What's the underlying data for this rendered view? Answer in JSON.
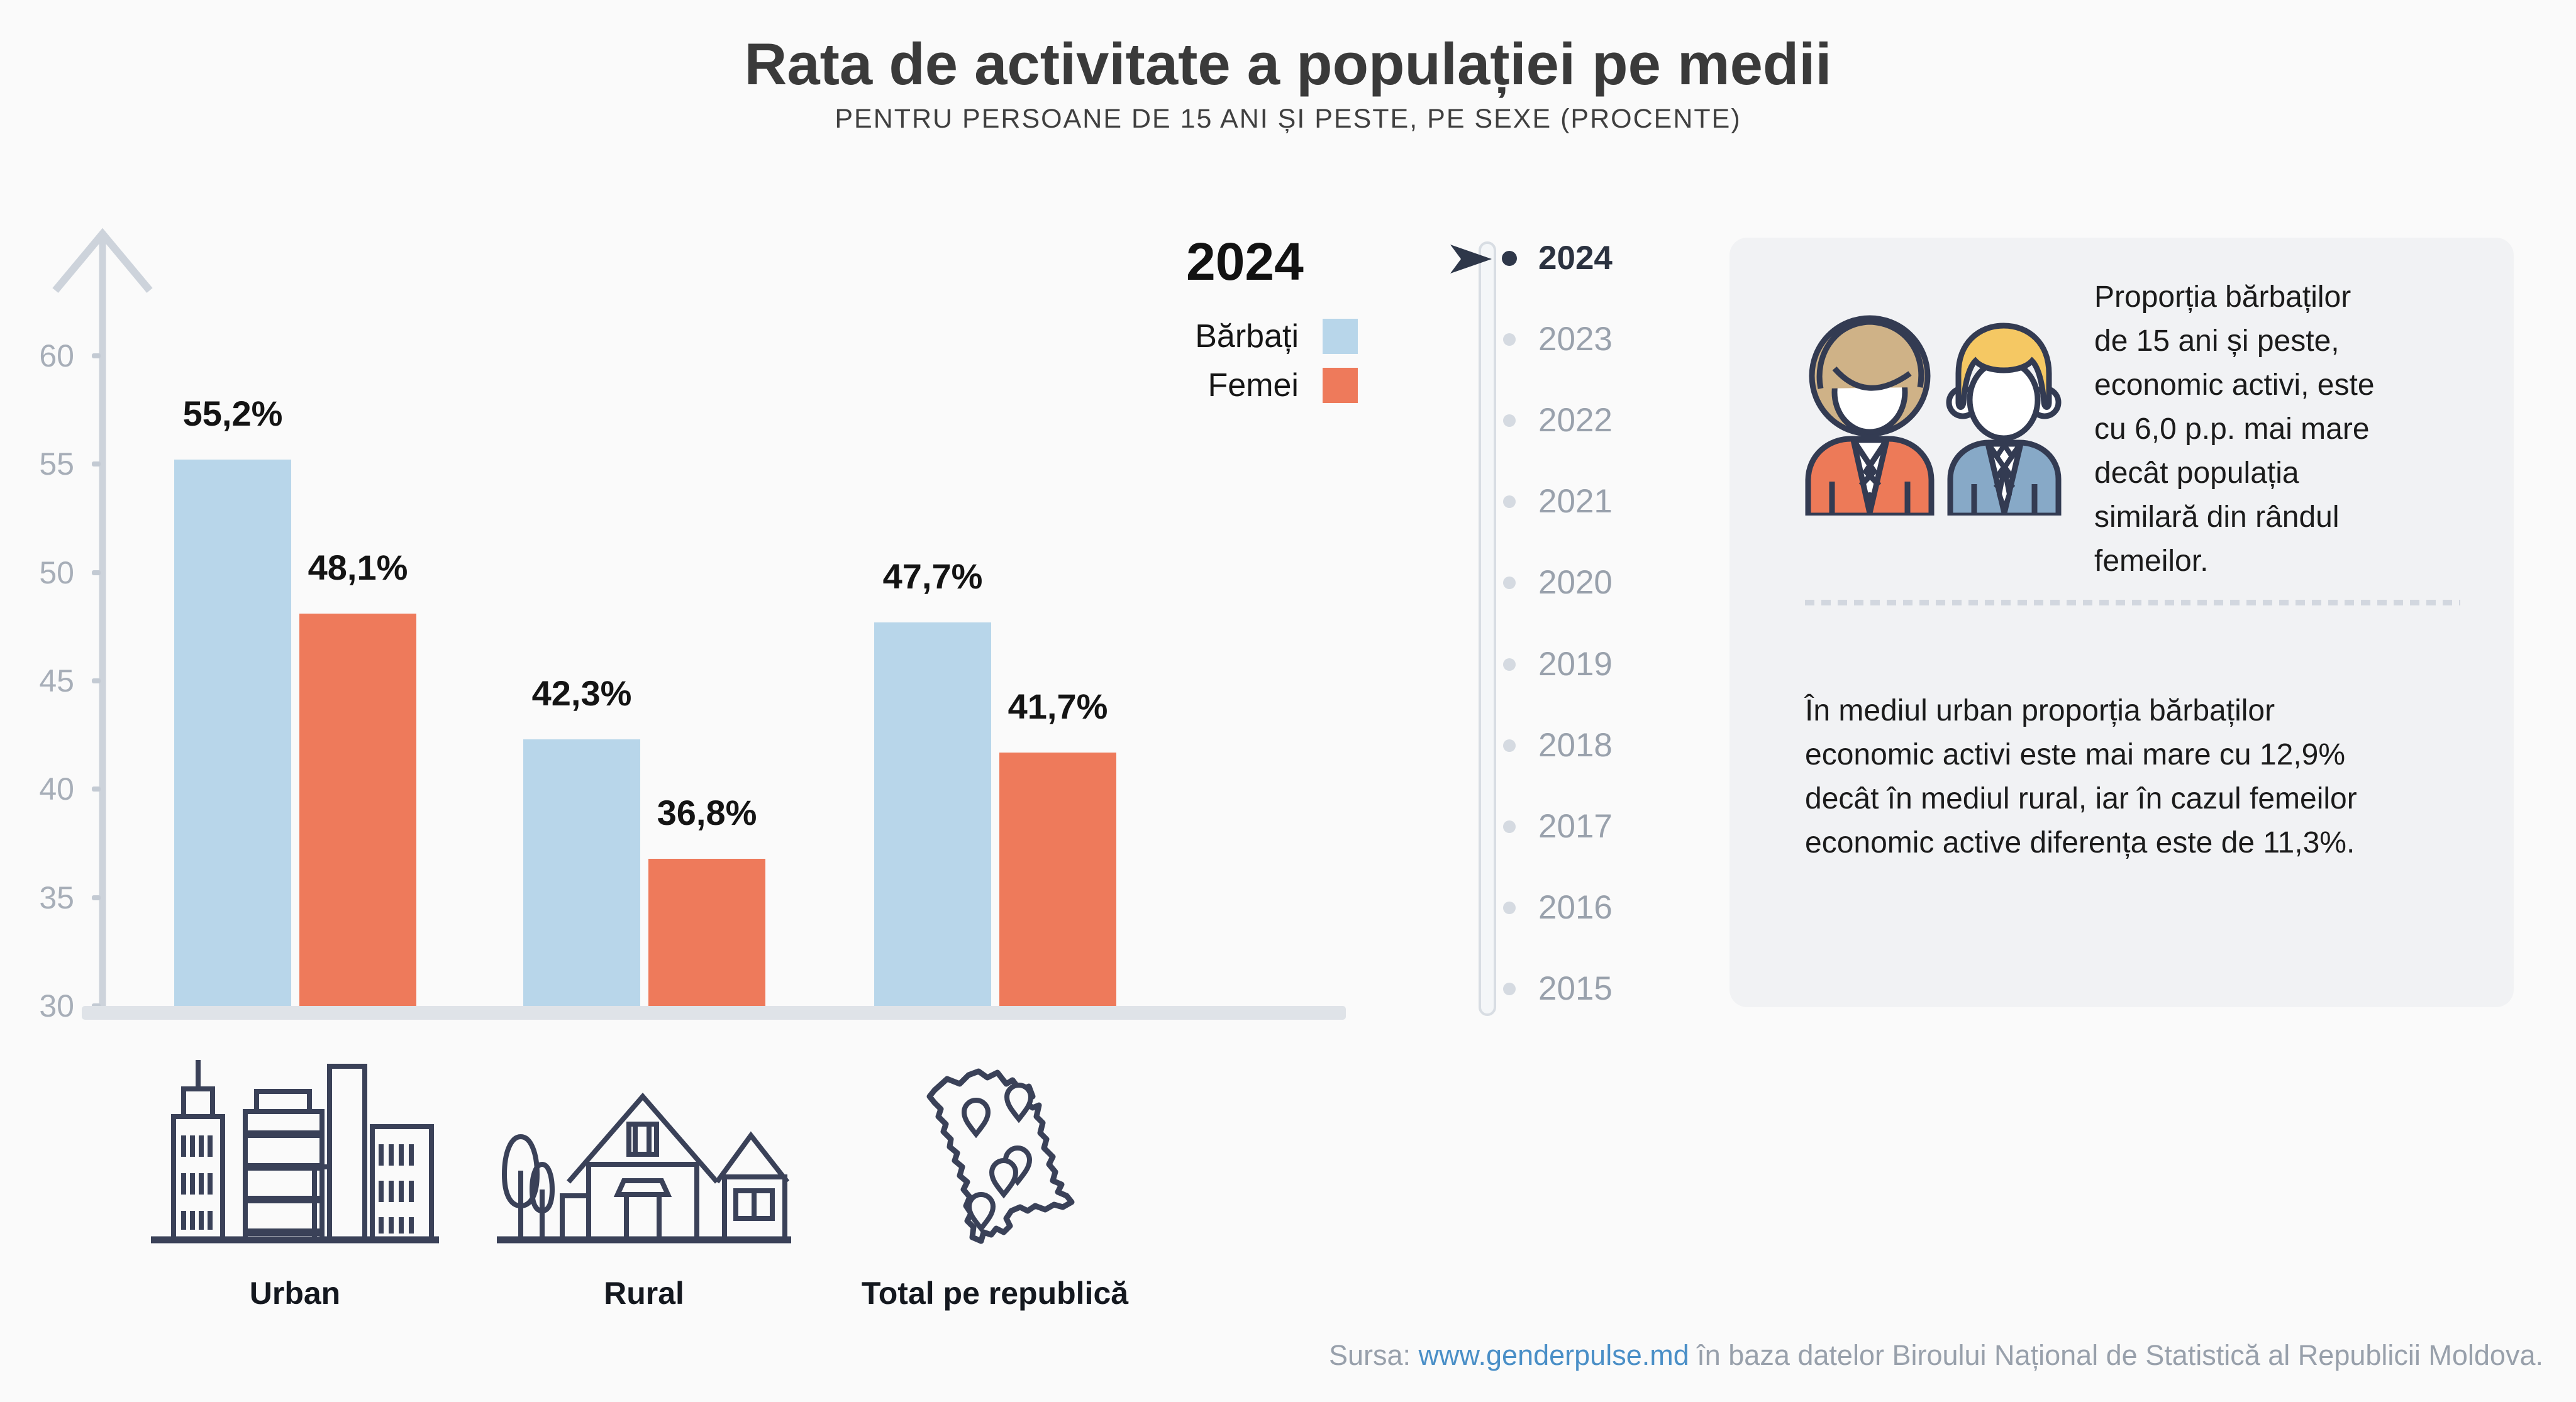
{
  "title": "Rata de activitate a populației pe medii",
  "subtitle": "PENTRU PERSOANE DE 15 ANI ȘI PESTE, PE SEXE (PROCENTE)",
  "chart_data": {
    "type": "bar",
    "categories": [
      "Urban",
      "Rural",
      "Total pe republică"
    ],
    "series": [
      {
        "name": "Bărbați",
        "color": "#b8d6ea",
        "values": [
          55.2,
          42.3,
          47.7
        ]
      },
      {
        "name": "Femei",
        "color": "#ee7a5b",
        "values": [
          48.1,
          36.8,
          41.7
        ]
      }
    ],
    "value_labels": {
      "Bărbați": [
        "55,2%",
        "42,3%",
        "47,7%"
      ],
      "Femei": [
        "48,1%",
        "36,8%",
        "41,7%"
      ]
    },
    "ylabel": "",
    "xlabel": "",
    "ylim": [
      30,
      62
    ],
    "yticks": [
      30,
      35,
      40,
      45,
      50,
      55,
      60
    ],
    "grid": false,
    "legend_position": "top-right"
  },
  "legend": {
    "year": "2024",
    "items": [
      {
        "label": "Bărbați",
        "color": "#b8d6ea"
      },
      {
        "label": "Femei",
        "color": "#ee7a5b"
      }
    ]
  },
  "timeline": {
    "years": [
      "2024",
      "2023",
      "2022",
      "2021",
      "2020",
      "2019",
      "2018",
      "2017",
      "2016",
      "2015"
    ],
    "selected": "2024"
  },
  "panel": {
    "text1": "Proporția bărbaților\nde 15 ani și peste,\neconomic activi, este\ncu 6,0 p.p. mai mare\ndecât populația\nsimilară din rândul\nfemeilor.",
    "text2": "În mediul urban proporția bărbaților\neconomic activi este mai mare cu 12,9%\ndecât în mediul rural, iar în cazul femeilor\neconomic active diferența este de 11,3%."
  },
  "footer": {
    "prefix": "Sursa: ",
    "link": "www.genderpulse.md",
    "suffix": " în baza datelor Biroului Național de Statistică al Republicii Moldova."
  },
  "icons": {
    "urban": "city-buildings-icon",
    "rural": "village-house-icon",
    "total": "moldova-map-icon",
    "panel": "man-woman-icon"
  },
  "colors": {
    "background": "#fafafa",
    "panel_background": "#f1f2f4",
    "axis": "#cdd3db",
    "baseline": "#dfe3e8",
    "tick_label": "#a7aeb8",
    "bar_men": "#b8d6ea",
    "bar_women": "#ee7a5b",
    "timeline_selected": "#2e3749",
    "timeline_idle": "#d5dae1",
    "link": "#4a8fc7",
    "outline_dark_navy": "#3a4158"
  }
}
